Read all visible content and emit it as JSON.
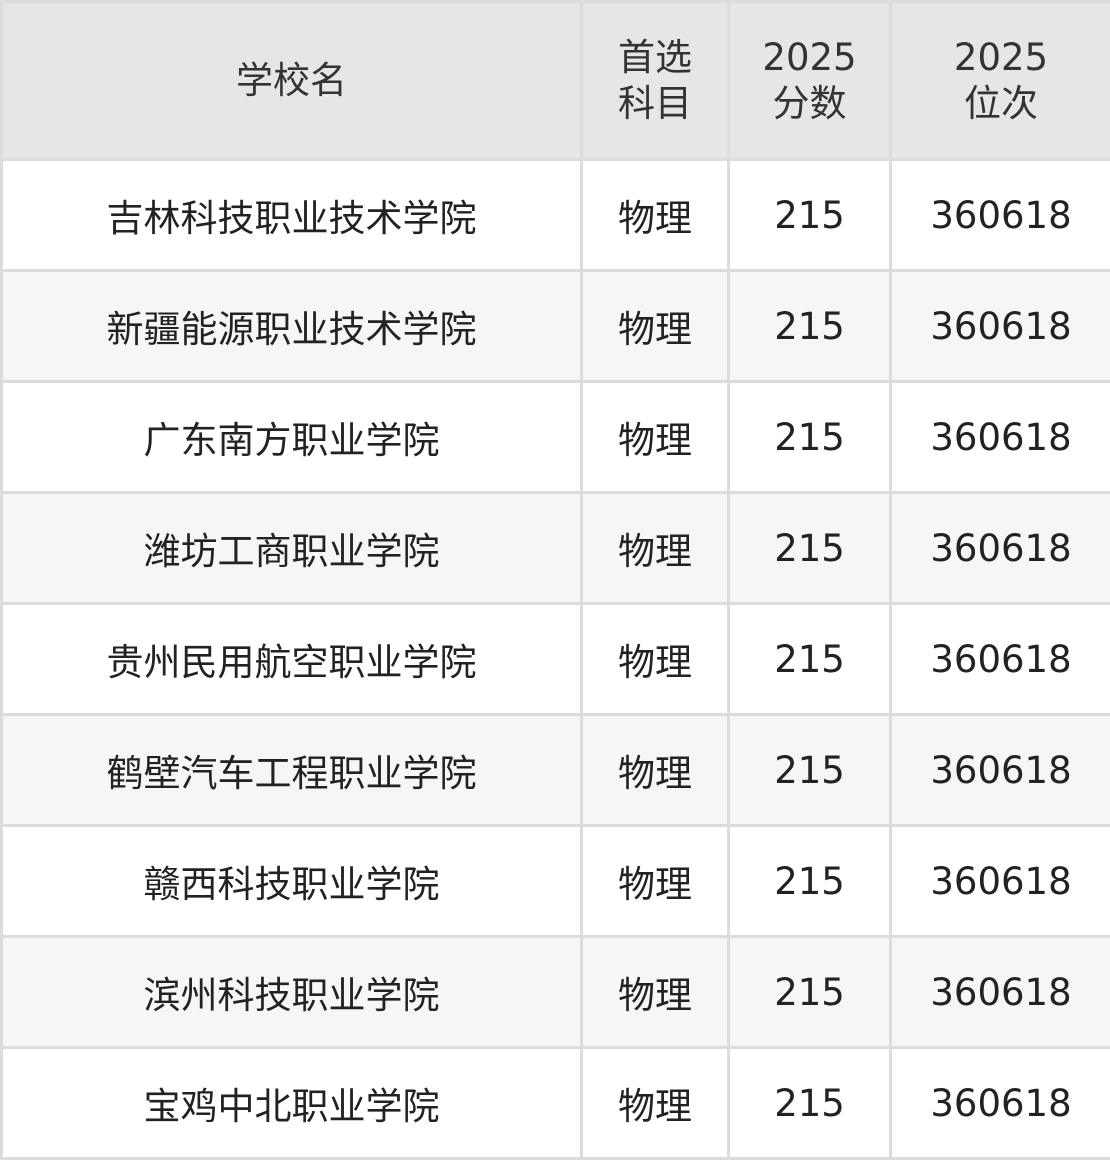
{
  "table": {
    "headers": [
      {
        "lines": [
          "学校名"
        ]
      },
      {
        "lines": [
          "首选",
          "科目"
        ]
      },
      {
        "lines": [
          "2025",
          "分数"
        ]
      },
      {
        "lines": [
          "2025",
          "位次"
        ]
      }
    ],
    "rows": [
      {
        "school": "吉林科技职业技术学院",
        "subject": "物理",
        "score": "215",
        "rank": "360618"
      },
      {
        "school": "新疆能源职业技术学院",
        "subject": "物理",
        "score": "215",
        "rank": "360618"
      },
      {
        "school": "广东南方职业学院",
        "subject": "物理",
        "score": "215",
        "rank": "360618"
      },
      {
        "school": "潍坊工商职业学院",
        "subject": "物理",
        "score": "215",
        "rank": "360618"
      },
      {
        "school": "贵州民用航空职业学院",
        "subject": "物理",
        "score": "215",
        "rank": "360618"
      },
      {
        "school": "鹤壁汽车工程职业学院",
        "subject": "物理",
        "score": "215",
        "rank": "360618"
      },
      {
        "school": "赣西科技职业学院",
        "subject": "物理",
        "score": "215",
        "rank": "360618"
      },
      {
        "school": "滨州科技职业学院",
        "subject": "物理",
        "score": "215",
        "rank": "360618"
      },
      {
        "school": "宝鸡中北职业学院",
        "subject": "物理",
        "score": "215",
        "rank": "360618"
      }
    ]
  }
}
